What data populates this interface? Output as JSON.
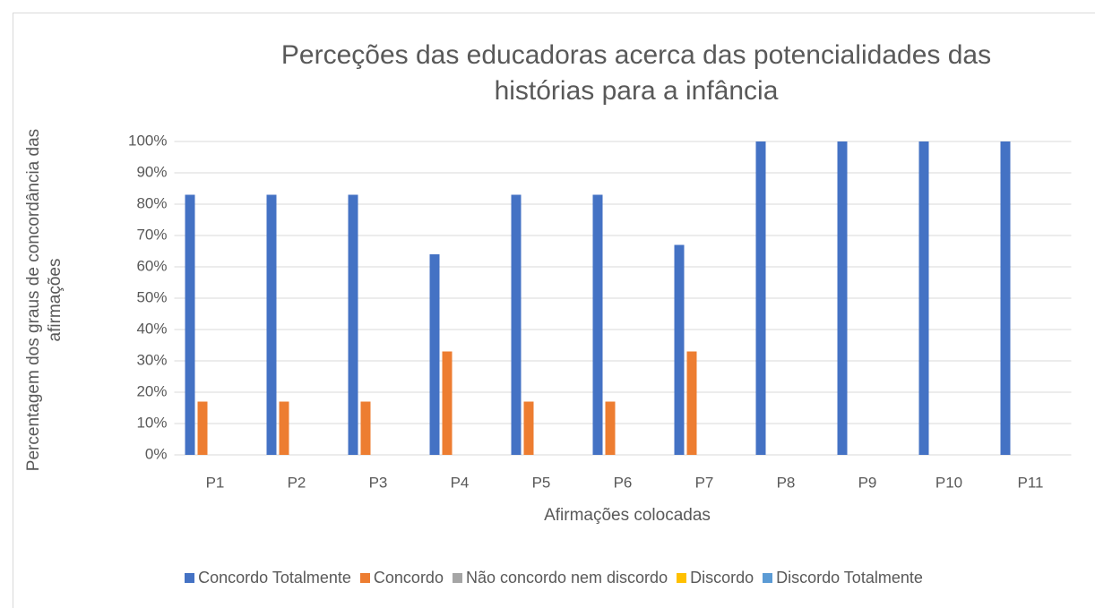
{
  "chart_data": {
    "type": "bar",
    "title": "Perceções das educadoras acerca das potencialidades das histórias para a infância",
    "x_label": "Afirmações colocadas",
    "y_label": "Percentagem dos graus de concordância das afirmações",
    "categories": [
      "P1",
      "P2",
      "P3",
      "P4",
      "P5",
      "P6",
      "P7",
      "P8",
      "P9",
      "P10",
      "P11"
    ],
    "series": [
      {
        "name": "Concordo Totalmente",
        "color": "#4472c4",
        "values": [
          83,
          83,
          83,
          64,
          83,
          83,
          67,
          100,
          100,
          100,
          100
        ]
      },
      {
        "name": "Concordo",
        "color": "#ed7d31",
        "values": [
          17,
          17,
          17,
          33,
          17,
          17,
          33,
          0,
          0,
          0,
          0
        ]
      },
      {
        "name": "Não concordo nem discordo",
        "color": "#a5a5a5",
        "values": [
          0,
          0,
          0,
          0,
          0,
          0,
          0,
          0,
          0,
          0,
          0
        ]
      },
      {
        "name": "Discordo",
        "color": "#ffc000",
        "values": [
          0,
          0,
          0,
          0,
          0,
          0,
          0,
          0,
          0,
          0,
          0
        ]
      },
      {
        "name": "Discordo Totalmente",
        "color": "#5b9bd5",
        "values": [
          0,
          0,
          0,
          0,
          0,
          0,
          0,
          0,
          0,
          0,
          0
        ]
      }
    ],
    "ylim": [
      0,
      100
    ],
    "yticks": [
      {
        "value": 0,
        "label": "0%"
      },
      {
        "value": 10,
        "label": "10%"
      },
      {
        "value": 20,
        "label": "20%"
      },
      {
        "value": 30,
        "label": "30%"
      },
      {
        "value": 40,
        "label": "40%"
      },
      {
        "value": 50,
        "label": "50%"
      },
      {
        "value": 60,
        "label": "60%"
      },
      {
        "value": 70,
        "label": "70%"
      },
      {
        "value": 80,
        "label": "80%"
      },
      {
        "value": 90,
        "label": "90%"
      },
      {
        "value": 100,
        "label": "100%"
      }
    ],
    "grid": true,
    "legend": "bottom"
  }
}
